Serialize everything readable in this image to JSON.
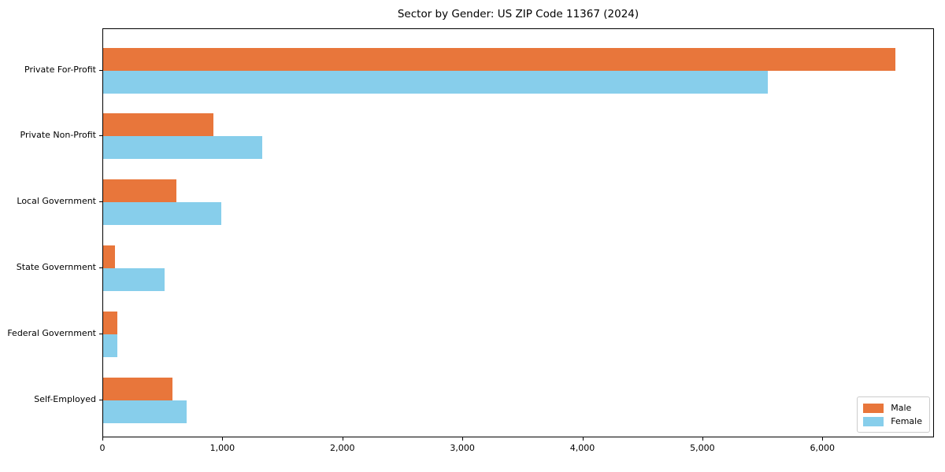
{
  "chart_data": {
    "type": "bar",
    "orientation": "horizontal",
    "title": "Sector by Gender: US ZIP Code 11367 (2024)",
    "categories": [
      "Private For-Profit",
      "Private Non-Profit",
      "Local Government",
      "State Government",
      "Federal Government",
      "Self-Employed"
    ],
    "series": [
      {
        "name": "Male",
        "color": "#e8763b",
        "values": [
          6600,
          920,
          610,
          100,
          120,
          580
        ]
      },
      {
        "name": "Female",
        "color": "#87ceeb",
        "values": [
          5540,
          1325,
          985,
          510,
          115,
          695
        ]
      }
    ],
    "xlabel": "",
    "ylabel": "",
    "xlim": [
      0,
      6930
    ],
    "xticks": [
      0,
      1000,
      2000,
      3000,
      4000,
      5000,
      6000
    ],
    "xtick_labels": [
      "0",
      "1,000",
      "2,000",
      "3,000",
      "4,000",
      "5,000",
      "6,000"
    ],
    "grid": false,
    "legend_position": "lower right",
    "colors": {
      "male": "#e8763b",
      "female": "#87ceeb",
      "axis": "#000000",
      "legend_border": "#cccccc"
    }
  }
}
